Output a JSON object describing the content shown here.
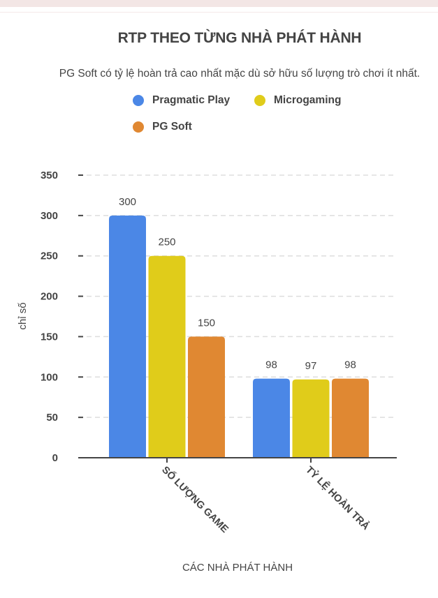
{
  "chart_data": {
    "type": "bar",
    "title": "RTP THEO TỪNG NHÀ PHÁT HÀNH",
    "subtitle": "PG Soft có tỷ lệ hoàn trả cao nhất mặc dù sở hữu số lượng trò chơi ít nhất.",
    "categories": [
      "SỐ LƯỢNG GAME",
      "TỶ LỆ HOÀN TRẢ"
    ],
    "series": [
      {
        "name": "Pragmatic Play",
        "color": "#4b87e6",
        "values": [
          300,
          98
        ]
      },
      {
        "name": "Microgaming",
        "color": "#e0cc1a",
        "values": [
          250,
          97
        ]
      },
      {
        "name": "PG Soft",
        "color": "#e08832",
        "values": [
          150,
          98
        ]
      }
    ],
    "xlabel": "CÁC NHÀ PHÁT HÀNH",
    "ylabel": "chỉ số",
    "ylim": [
      0,
      350
    ],
    "yticks": [
      0,
      50,
      100,
      150,
      200,
      250,
      300,
      350
    ],
    "grid": true,
    "legend_position": "top"
  }
}
